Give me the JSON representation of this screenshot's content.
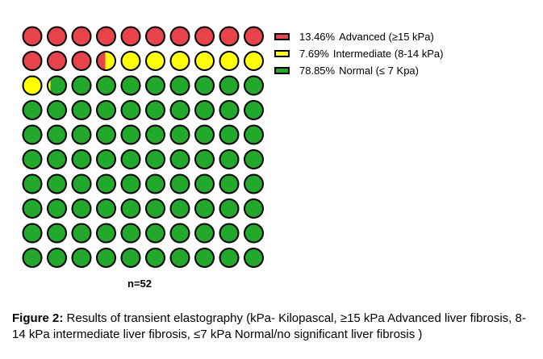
{
  "chart_data": {
    "type": "waffle",
    "total_units": 100,
    "columns": 10,
    "series": [
      {
        "name": "Advanced (≥15 kPa)",
        "value": 13.46,
        "label": "13.46%",
        "color": "#e8424a"
      },
      {
        "name": "Intermediate (8-14 kPa)",
        "value": 7.69,
        "label": "7.69%",
        "color": "#ffff00"
      },
      {
        "name": "Normal (≤ 7 Kpa)",
        "value": 78.85,
        "label": "78.85%",
        "color": "#22a82a"
      }
    ],
    "n_label": "n=52"
  },
  "caption": {
    "prefix": "Figure 2:",
    "text": "Results of transient elastography (kPa- Kilopascal, ≥15 kPa Advanced liver fibrosis, 8-14 kPa intermediate liver fibrosis, ≤7 kPa Normal/no significant liver fibrosis )"
  }
}
